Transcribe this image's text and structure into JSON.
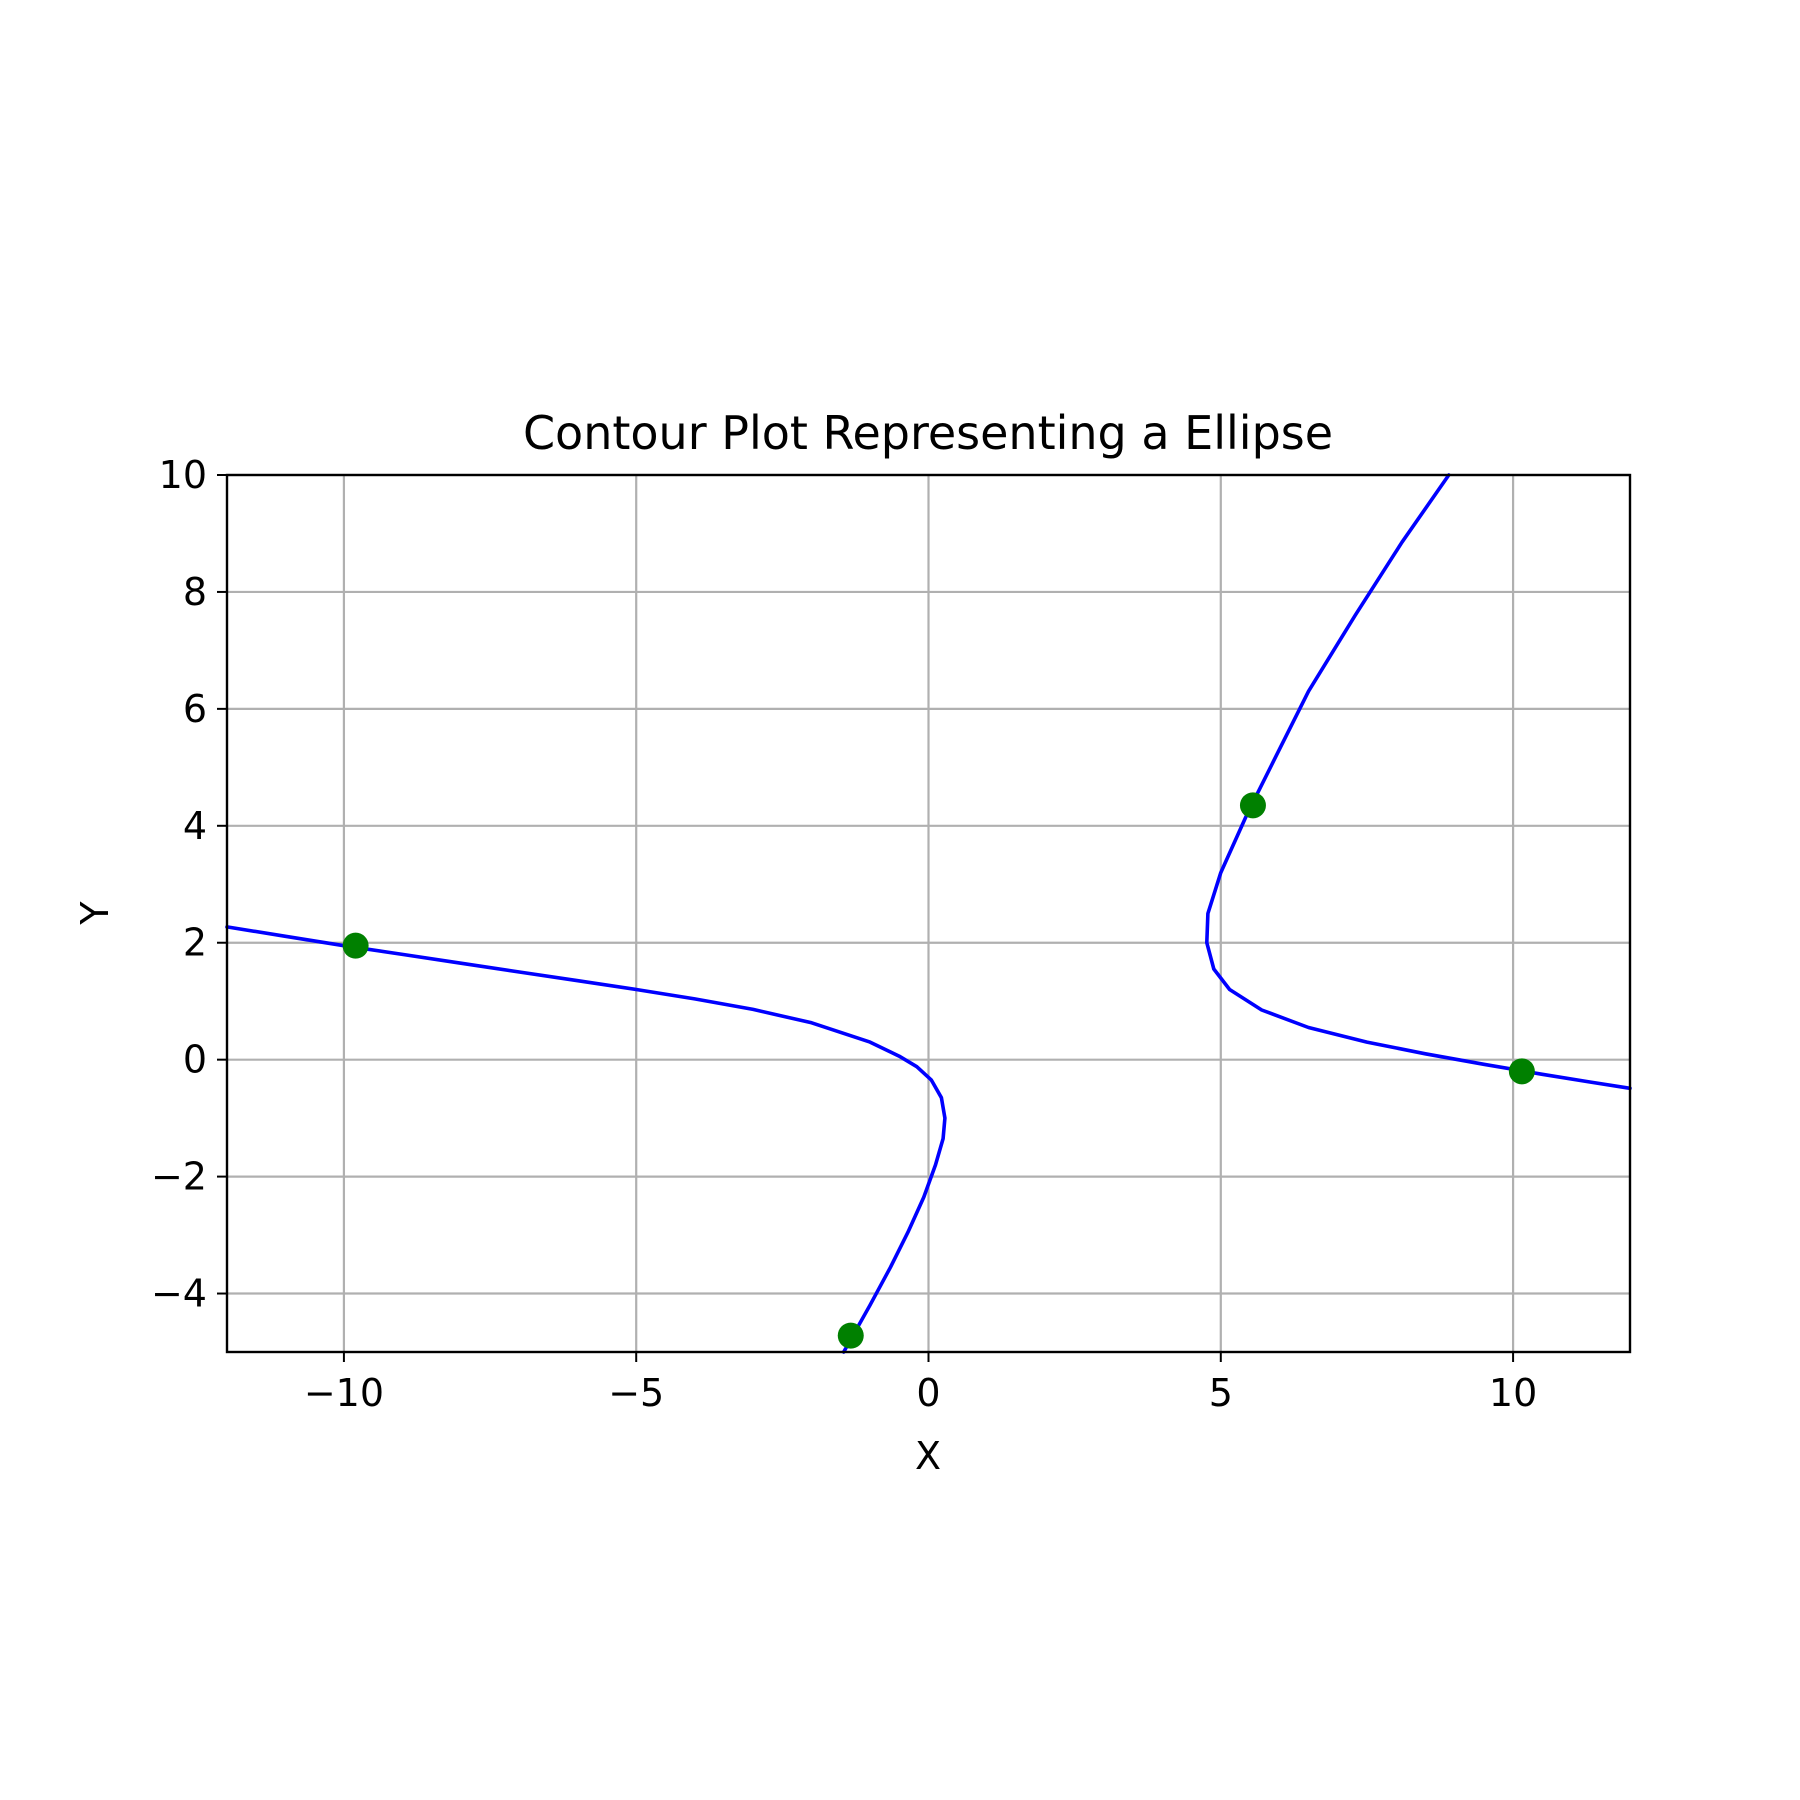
{
  "chart_data": {
    "type": "line",
    "title": "Contour Plot Representing a Ellipse",
    "xlabel": "X",
    "ylabel": "Y",
    "xlim": [
      -12,
      12
    ],
    "ylim": [
      -5,
      10
    ],
    "xticks": [
      -10,
      -5,
      0,
      5,
      10
    ],
    "xtick_labels": [
      "−10",
      "−5",
      "0",
      "5",
      "10"
    ],
    "yticks": [
      -4,
      -2,
      0,
      2,
      4,
      6,
      8,
      10
    ],
    "ytick_labels": [
      "−4",
      "−2",
      "0",
      "2",
      "4",
      "6",
      "8",
      "10"
    ],
    "grid": true,
    "line_color": "#0000ff",
    "point_color": "#008000",
    "series": [
      {
        "points": [
          [
            -12,
            2.27
          ],
          [
            -11,
            2.11
          ],
          [
            -10,
            1.95
          ],
          [
            -9,
            1.8
          ],
          [
            -8,
            1.65
          ],
          [
            -7,
            1.5
          ],
          [
            -6,
            1.35
          ],
          [
            -5,
            1.2
          ],
          [
            -4,
            1.04
          ],
          [
            -3,
            0.86
          ],
          [
            -2,
            0.63
          ],
          [
            -1,
            0.3
          ],
          [
            -0.5,
            0.06
          ],
          [
            -0.2,
            -0.12
          ],
          [
            0.05,
            -0.35
          ],
          [
            0.22,
            -0.65
          ],
          [
            0.28,
            -1.0
          ],
          [
            0.25,
            -1.35
          ],
          [
            0.12,
            -1.8
          ],
          [
            -0.08,
            -2.35
          ],
          [
            -0.35,
            -2.95
          ],
          [
            -0.65,
            -3.55
          ],
          [
            -1.0,
            -4.2
          ],
          [
            -1.45,
            -5.0
          ]
        ]
      },
      {
        "points": [
          [
            8.9,
            10.0
          ],
          [
            8.1,
            8.85
          ],
          [
            7.3,
            7.6
          ],
          [
            6.5,
            6.3
          ],
          [
            5.95,
            5.2
          ],
          [
            5.45,
            4.2
          ],
          [
            5.0,
            3.2
          ],
          [
            4.78,
            2.5
          ],
          [
            4.76,
            2.0
          ],
          [
            4.88,
            1.55
          ],
          [
            5.15,
            1.2
          ],
          [
            5.7,
            0.85
          ],
          [
            6.5,
            0.55
          ],
          [
            7.5,
            0.3
          ],
          [
            8.5,
            0.1
          ],
          [
            9.5,
            -0.08
          ],
          [
            10.5,
            -0.25
          ],
          [
            11.3,
            -0.38
          ],
          [
            12,
            -0.49
          ]
        ]
      }
    ],
    "points": [
      {
        "x": -9.8,
        "y": 1.95
      },
      {
        "x": -1.33,
        "y": -4.72
      },
      {
        "x": 5.55,
        "y": 4.35
      },
      {
        "x": 10.15,
        "y": -0.2
      }
    ]
  }
}
